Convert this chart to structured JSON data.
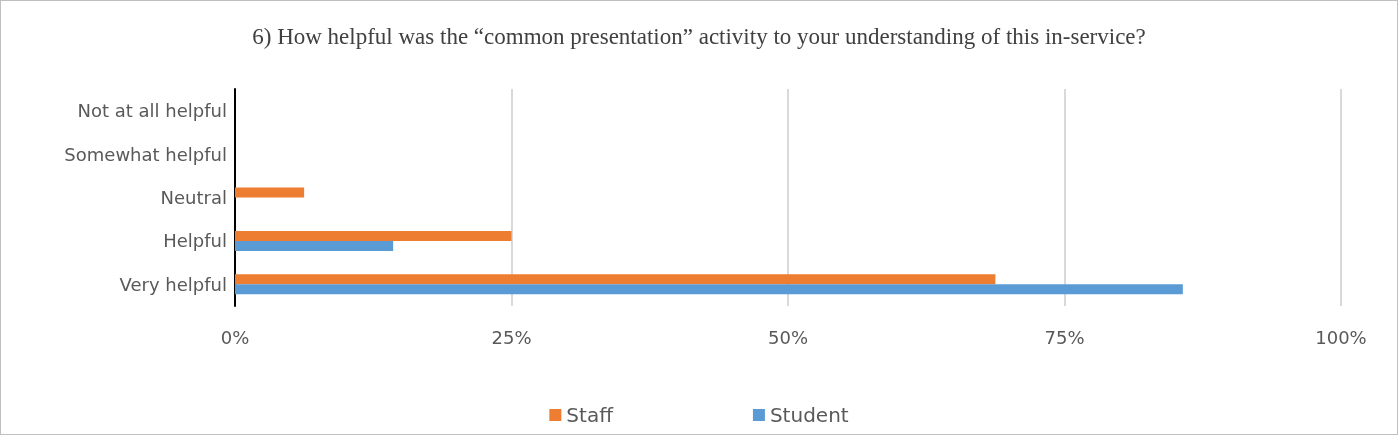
{
  "chart_data": {
    "type": "bar",
    "orientation": "horizontal",
    "title": "6) How helpful was the “common presentation” activity to your understanding of this in-service?",
    "categories": [
      "Not at all helpful",
      "Somewhat helpful",
      "Neutral",
      "Helpful",
      "Very helpful"
    ],
    "series": [
      {
        "name": "Staff",
        "color": "#ed7d31",
        "values": [
          0,
          0,
          6.25,
          25,
          68.75
        ]
      },
      {
        "name": "Student",
        "color": "#5b9bd5",
        "values": [
          0,
          0,
          0,
          14.3,
          85.7
        ]
      }
    ],
    "xlim": [
      0,
      100
    ],
    "xticks": [
      {
        "value": 0,
        "label": "0%"
      },
      {
        "value": 25,
        "label": "25%"
      },
      {
        "value": 50,
        "label": "50%"
      },
      {
        "value": 75,
        "label": "75%"
      },
      {
        "value": 100,
        "label": "100%"
      }
    ],
    "grid": "x",
    "legend": "bottom"
  }
}
